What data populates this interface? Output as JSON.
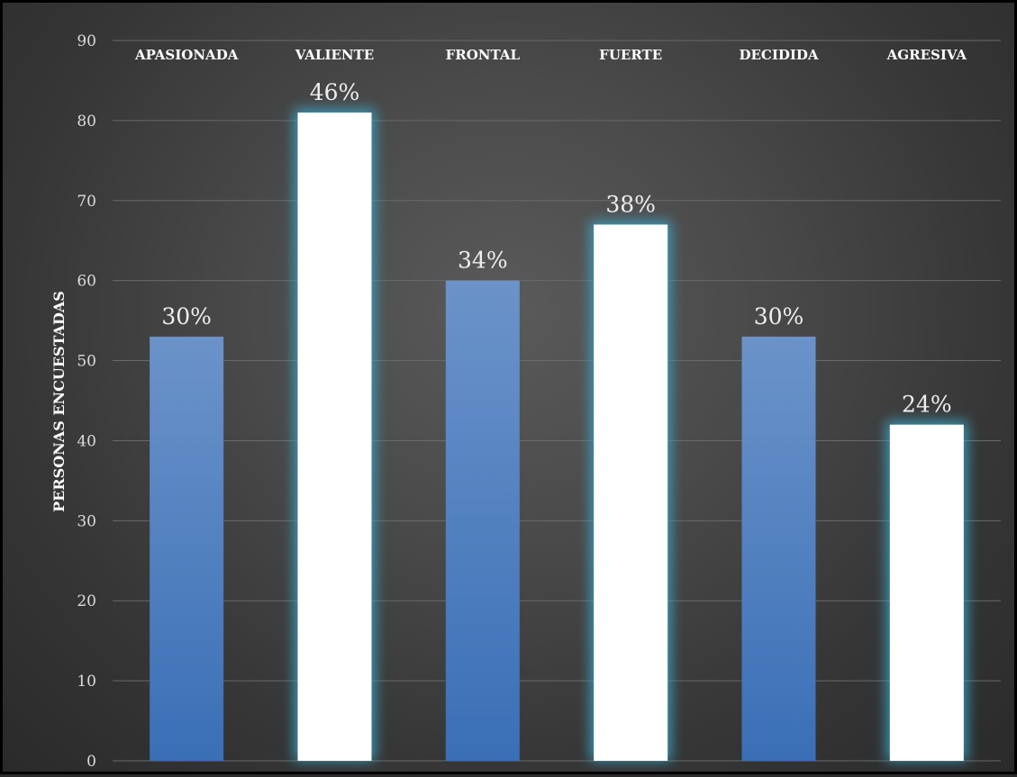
{
  "chart_data": {
    "type": "bar",
    "categories": [
      "APASIONADA",
      "VALIENTE",
      "FRONTAL",
      "FUERTE",
      "DECIDIDA",
      "AGRESIVA"
    ],
    "values": [
      53,
      81,
      60,
      67,
      53,
      42
    ],
    "data_labels": [
      "30%",
      "46%",
      "34%",
      "38%",
      "30%",
      "24%"
    ],
    "highlighted": [
      false,
      true,
      false,
      true,
      false,
      true
    ],
    "ylabel": "PERSONAS ENCUESTADAS",
    "ylim": [
      0,
      90
    ],
    "yticks": [
      0,
      10,
      20,
      30,
      40,
      50,
      60,
      70,
      80,
      90
    ],
    "category_labels_position": "top",
    "grid": true,
    "colors": {
      "bar": "#4a7fc4",
      "highlight_bar": "#ffffff",
      "highlight_glow": "#3aa6c8",
      "grid": "#6a6a6a",
      "background": "#454545"
    }
  }
}
